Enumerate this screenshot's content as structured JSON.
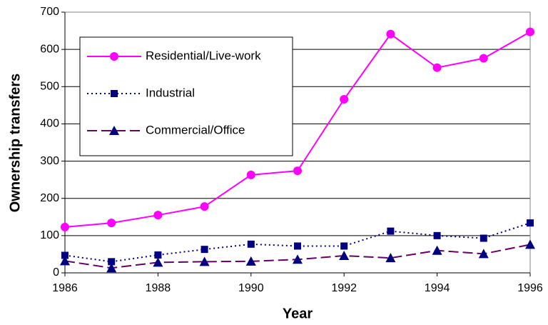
{
  "chart_data": {
    "type": "line",
    "x_label": "Year",
    "y_label": "Ownership transfers",
    "x": [
      1986,
      1987,
      1988,
      1989,
      1990,
      1991,
      1992,
      1993,
      1994,
      1995,
      1996
    ],
    "series": [
      {
        "name": "Residential/Live-work",
        "color": "#ff00ff",
        "marker_color": "#ff00ff",
        "marker": "circle",
        "line_style": "solid",
        "values": [
          123,
          134,
          155,
          178,
          263,
          274,
          466,
          641,
          551,
          576,
          647
        ]
      },
      {
        "name": "Industrial",
        "color": "#000080",
        "marker_color": "#000080",
        "marker": "square",
        "line_style": "dotted",
        "values": [
          47,
          30,
          48,
          63,
          77,
          72,
          72,
          112,
          100,
          93,
          134
        ]
      },
      {
        "name": "Commercial/Office",
        "color": "#660066",
        "marker_color": "#000080",
        "marker": "triangle",
        "line_style": "dashed",
        "values": [
          32,
          13,
          28,
          30,
          31,
          36,
          46,
          40,
          60,
          51,
          76
        ]
      }
    ],
    "xlim": [
      1986,
      1996
    ],
    "xticks": [
      1986,
      1988,
      1990,
      1992,
      1994,
      1996
    ],
    "ylim": [
      0,
      700
    ],
    "yticks": [
      0,
      100,
      200,
      300,
      400,
      500,
      600,
      700
    ],
    "grid": true,
    "legend": "upper-left"
  }
}
